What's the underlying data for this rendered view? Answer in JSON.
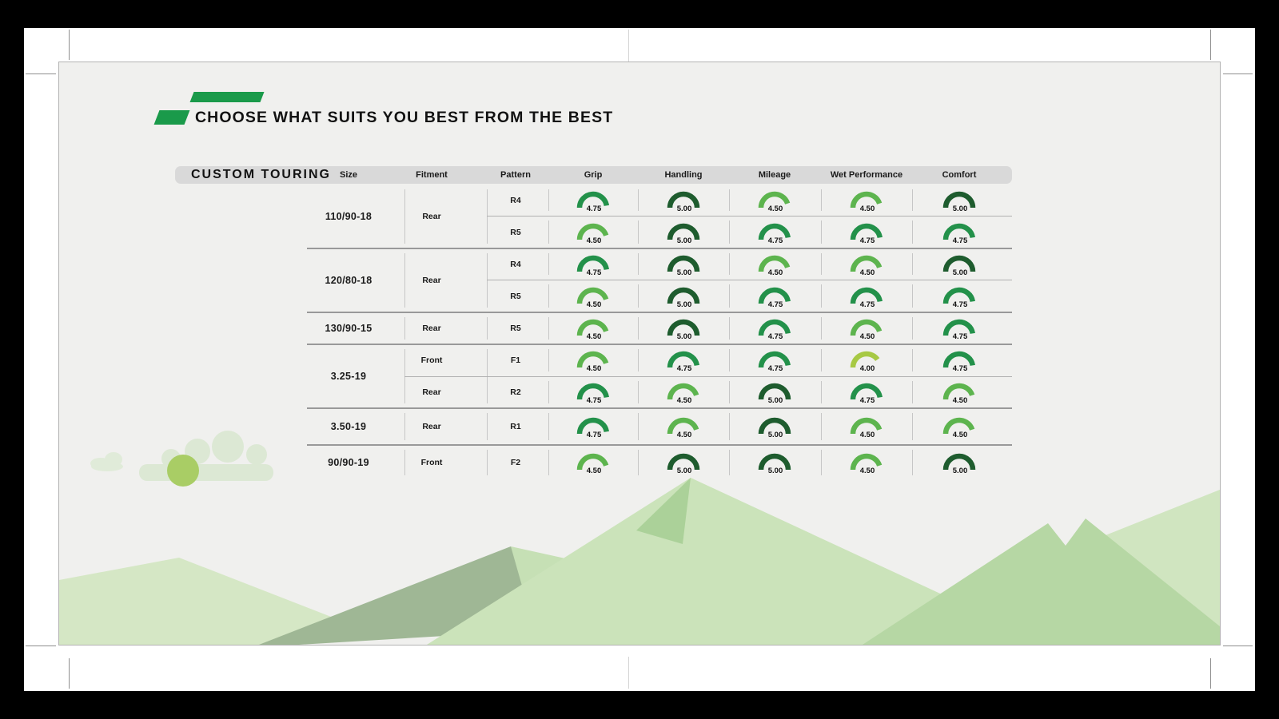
{
  "page": {
    "title": "CHOOSE WHAT SUITS YOU BEST FROM THE BEST"
  },
  "brand": {
    "green": "#1a9a4a"
  },
  "table": {
    "section_label": "CUSTOM TOURING",
    "columns": [
      "Size",
      "Fitment",
      "Pattern",
      "Grip",
      "Handling",
      "Mileage",
      "Wet Performance",
      "Comfort"
    ],
    "groups": [
      {
        "size": "110/90-18",
        "fitment": "Rear",
        "rows": [
          {
            "pattern": "R4",
            "values": [
              "4.75",
              "5.00",
              "4.50",
              "4.50",
              "5.00"
            ]
          },
          {
            "pattern": "R5",
            "values": [
              "4.50",
              "5.00",
              "4.75",
              "4.75",
              "4.75"
            ]
          }
        ]
      },
      {
        "size": "120/80-18",
        "fitment": "Rear",
        "rows": [
          {
            "pattern": "R4",
            "values": [
              "4.75",
              "5.00",
              "4.50",
              "4.50",
              "5.00"
            ]
          },
          {
            "pattern": "R5",
            "values": [
              "4.50",
              "5.00",
              "4.75",
              "4.75",
              "4.75"
            ]
          }
        ]
      },
      {
        "size": "130/90-15",
        "fitment": "Rear",
        "rows": [
          {
            "pattern": "R5",
            "values": [
              "4.50",
              "5.00",
              "4.75",
              "4.50",
              "4.75"
            ]
          }
        ]
      },
      {
        "size": "3.25-19",
        "fitment": null,
        "rows": [
          {
            "fitment": "Front",
            "pattern": "F1",
            "values": [
              "4.50",
              "4.75",
              "4.75",
              "4.00",
              "4.75"
            ]
          },
          {
            "fitment": "Rear",
            "pattern": "R2",
            "values": [
              "4.75",
              "4.50",
              "5.00",
              "4.75",
              "4.50"
            ]
          }
        ]
      },
      {
        "size": "3.50-19",
        "fitment": "Rear",
        "rows": [
          {
            "pattern": "R1",
            "values": [
              "4.75",
              "4.50",
              "5.00",
              "4.50",
              "4.50"
            ]
          }
        ]
      },
      {
        "size": "90/90-19",
        "fitment": "Front",
        "rows": [
          {
            "pattern": "F2",
            "values": [
              "4.50",
              "5.00",
              "5.00",
              "4.50",
              "5.00"
            ]
          }
        ]
      }
    ]
  },
  "gauges": {
    "scale_max": 5,
    "colors": {
      "5.00": "#1e5c2e",
      "4.75": "#23914a",
      "4.50": "#5db44e",
      "4.00": "#a7c944"
    }
  },
  "chart_data": {
    "type": "table",
    "title": "CUSTOM TOURING",
    "columns": [
      "Size",
      "Fitment",
      "Pattern",
      "Grip",
      "Handling",
      "Mileage",
      "Wet Performance",
      "Comfort"
    ],
    "rows": [
      [
        "110/90-18",
        "Rear",
        "R4",
        4.75,
        5.0,
        4.5,
        4.5,
        5.0
      ],
      [
        "110/90-18",
        "Rear",
        "R5",
        4.5,
        5.0,
        4.75,
        4.75,
        4.75
      ],
      [
        "120/80-18",
        "Rear",
        "R4",
        4.75,
        5.0,
        4.5,
        4.5,
        5.0
      ],
      [
        "120/80-18",
        "Rear",
        "R5",
        4.5,
        5.0,
        4.75,
        4.75,
        4.75
      ],
      [
        "130/90-15",
        "Rear",
        "R5",
        4.5,
        5.0,
        4.75,
        4.5,
        4.75
      ],
      [
        "3.25-19",
        "Front",
        "F1",
        4.5,
        4.75,
        4.75,
        4.0,
        4.75
      ],
      [
        "3.25-19",
        "Rear",
        "R2",
        4.75,
        4.5,
        5.0,
        4.75,
        4.5
      ],
      [
        "3.50-19",
        "Rear",
        "R1",
        4.75,
        4.5,
        5.0,
        4.5,
        4.5
      ],
      [
        "90/90-19",
        "Front",
        "F2",
        4.5,
        5.0,
        5.0,
        4.5,
        5.0
      ]
    ],
    "value_scale": [
      0,
      5
    ],
    "gauge_style": "semicircle"
  }
}
